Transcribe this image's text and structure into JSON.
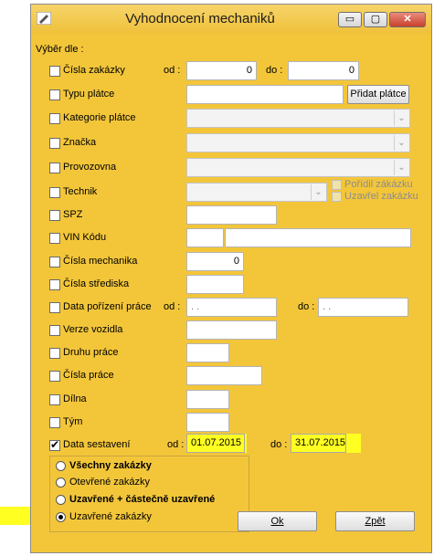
{
  "window": {
    "title": "Vyhodnocení mechaniků",
    "minimize_glyph": "▭",
    "maximize_glyph": "▢",
    "close_glyph": "✕"
  },
  "section_label": "Výběr dle :",
  "rows": {
    "cisla_zakazky": {
      "label": "Čísla zakázky",
      "od": "od :",
      "do": "do :",
      "from_value": "0",
      "to_value": "0"
    },
    "typu_platce": {
      "label": "Typu plátce",
      "button": "Přidat plátce"
    },
    "kategorie_platce": {
      "label": "Kategorie plátce"
    },
    "znacka": {
      "label": "Značka"
    },
    "provozovna": {
      "label": "Provozovna"
    },
    "technik": {
      "label": "Technik",
      "option_porizil": "Pořídil zákázku",
      "option_uzavrel": "Uzavřel zakázku"
    },
    "spz": {
      "label": "SPZ"
    },
    "vin": {
      "label": "VIN Kódu"
    },
    "cisla_mechanika": {
      "label": "Čísla mechanika",
      "value": "0"
    },
    "cisla_strediska": {
      "label": "Čísla střediska"
    },
    "data_porizeni": {
      "label": "Data pořízení práce",
      "od": "od :",
      "do": "do :",
      "from_value": " .  .",
      "to_value": " .  ."
    },
    "verze_vozidla": {
      "label": "Verze vozidla"
    },
    "druhu_prace": {
      "label": "Druhu práce"
    },
    "cisla_prace": {
      "label": "Čísla práce"
    },
    "dilna": {
      "label": "Dílna"
    },
    "tym": {
      "label": "Tým"
    },
    "data_sestaveni": {
      "label": "Data sestavení",
      "od": "od :",
      "do": "do :",
      "from_value": "01.07.2015",
      "to_value": "31.07.2015",
      "checked": true
    }
  },
  "radio_options": [
    {
      "label": "Všechny zakázky",
      "bold": true,
      "selected": false
    },
    {
      "label": "Otevřené zakázky",
      "bold": false,
      "selected": false
    },
    {
      "label": "Uzavřené + částečně uzavřené",
      "bold": true,
      "selected": false
    },
    {
      "label": "Uzavřené zakázky",
      "bold": false,
      "selected": true
    }
  ],
  "buttons": {
    "ok": "Ok",
    "back": "Zpět"
  },
  "colors": {
    "window_bg": "#f3c63a",
    "highlight": "#ffff22"
  }
}
